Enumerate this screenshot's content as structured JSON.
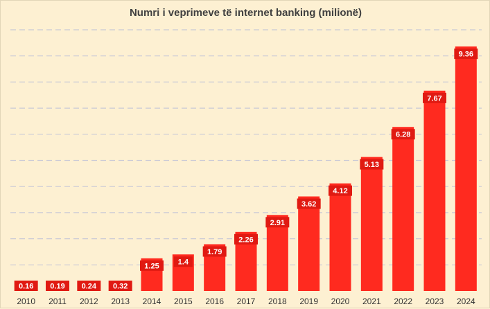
{
  "chart_data": {
    "type": "bar",
    "title": "Numri i veprimeve të internet banking (milionë)",
    "xlabel": "",
    "ylabel": "",
    "categories": [
      "2010",
      "2011",
      "2012",
      "2013",
      "2014",
      "2015",
      "2016",
      "2017",
      "2018",
      "2019",
      "2020",
      "2021",
      "2022",
      "2023",
      "2024"
    ],
    "values": [
      0.16,
      0.19,
      0.24,
      0.32,
      1.25,
      1.4,
      1.79,
      2.26,
      2.91,
      3.62,
      4.12,
      5.13,
      6.28,
      7.67,
      9.36
    ],
    "value_labels": [
      "0.16",
      "0.19",
      "0.24",
      "0.32",
      "1.25",
      "1.4",
      "1.79",
      "2.26",
      "2.91",
      "3.62",
      "4.12",
      "5.13",
      "6.28",
      "7.67",
      "9.36"
    ],
    "ylim": [
      0,
      10
    ],
    "grid": true,
    "legend": "none",
    "colors": {
      "bar": "#ff2a1f",
      "label_box": "#e01a12",
      "background": "#fdf0d2",
      "grid": "#c9c9d6"
    }
  }
}
